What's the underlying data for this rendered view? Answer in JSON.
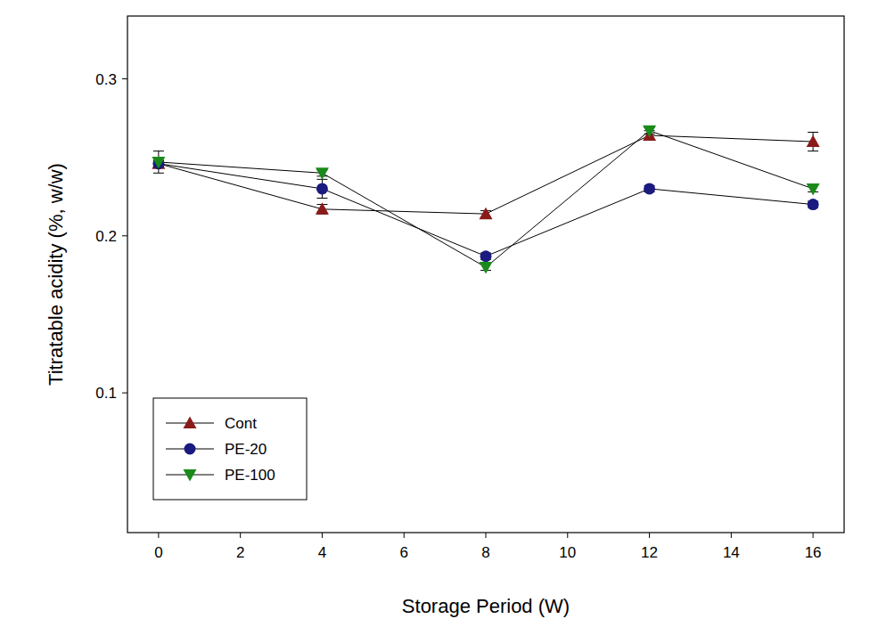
{
  "chart_data": {
    "type": "line",
    "x_label": "Storage Period (W)",
    "y_label": "Titratable acidity (%, w/w)",
    "x": [
      0,
      4,
      8,
      12,
      16
    ],
    "series": [
      {
        "name": "Cont",
        "color": "#8b1a1a",
        "marker": "triangle-up",
        "values": [
          0.246,
          0.217,
          0.214,
          0.264,
          0.26
        ],
        "errors": [
          0.002,
          0.003,
          0.002,
          0.003,
          0.006
        ]
      },
      {
        "name": "PE-20",
        "color": "#1a1a80",
        "marker": "circle",
        "values": [
          0.246,
          0.23,
          0.187,
          0.23,
          0.22
        ],
        "errors": [
          0.002,
          0.006,
          0.002,
          0.002,
          0.002
        ]
      },
      {
        "name": "PE-100",
        "color": "#1a8a1a",
        "marker": "triangle-down",
        "values": [
          0.247,
          0.24,
          0.18,
          0.267,
          0.23
        ],
        "errors": [
          0.007,
          0.002,
          0.002,
          0.002,
          0.002
        ]
      }
    ],
    "xlim": [
      -0.76,
      16.76
    ],
    "xticks": [
      0,
      2,
      4,
      6,
      8,
      10,
      12,
      14,
      16
    ],
    "ylim": [
      0.011,
      0.34
    ],
    "yticks": [
      0.1,
      0.2,
      0.3
    ],
    "grid": false,
    "legend": "lower left"
  }
}
